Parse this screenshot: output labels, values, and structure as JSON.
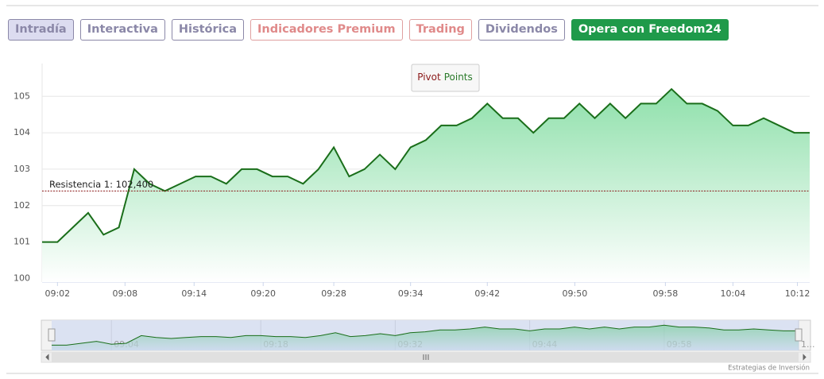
{
  "buttons": [
    "Intradía",
    "Interactiva",
    "Histórica",
    "Indicadores Premium",
    "Trading",
    "Dividendos",
    "Opera con Freedom24"
  ],
  "chart_data": {
    "type": "area",
    "legend": [
      "Pivot",
      "Points"
    ],
    "series": [
      {
        "color": "#1a6e1a",
        "values": [
          101.0,
          101.0,
          101.4,
          101.8,
          101.2,
          101.4,
          103.0,
          102.6,
          102.4,
          102.6,
          102.8,
          102.8,
          102.6,
          103.0,
          103.0,
          102.8,
          102.8,
          102.6,
          103.0,
          103.6,
          102.8,
          103.0,
          103.4,
          103.0,
          103.6,
          103.8,
          104.2,
          104.2,
          104.4,
          104.8,
          104.4,
          104.4,
          104.0,
          104.4,
          104.4,
          104.8,
          104.4,
          104.8,
          104.4,
          104.8,
          104.8,
          105.2,
          104.8,
          104.8,
          104.6,
          104.2,
          104.2,
          104.4,
          104.2,
          104.0,
          104.0
        ]
      }
    ],
    "xlim": [
      0,
      50
    ],
    "xticks": [
      {
        "value": 1.0,
        "label": "09:02"
      },
      {
        "value": 5.4,
        "label": "09:08"
      },
      {
        "value": 9.9,
        "label": "09:14"
      },
      {
        "value": 14.4,
        "label": "09:20"
      },
      {
        "value": 19.0,
        "label": "09:28"
      },
      {
        "value": 24.0,
        "label": "09:34"
      },
      {
        "value": 29.0,
        "label": "09:42"
      },
      {
        "value": 34.7,
        "label": "09:50"
      },
      {
        "value": 40.6,
        "label": "09:58"
      },
      {
        "value": 45.0,
        "label": "10:04"
      },
      {
        "value": 49.2,
        "label": "10:12"
      }
    ],
    "ylim": [
      99.9,
      105.9
    ],
    "yticks": [
      100,
      101,
      102,
      103,
      104,
      105
    ],
    "grid": true,
    "resistance": {
      "value": 102.4,
      "label": "Resistencia 1: 102,400"
    },
    "navigator": {
      "xticks": [
        {
          "value": 4.0,
          "label": "09:04"
        },
        {
          "value": 14.0,
          "label": "09:18"
        },
        {
          "value": 23.0,
          "label": "09:32"
        },
        {
          "value": 32.0,
          "label": "09:44"
        },
        {
          "value": 41.0,
          "label": "09:58"
        },
        {
          "value": 50.0,
          "label": "1..."
        }
      ]
    },
    "credit": "Estrategias de Inversión"
  }
}
